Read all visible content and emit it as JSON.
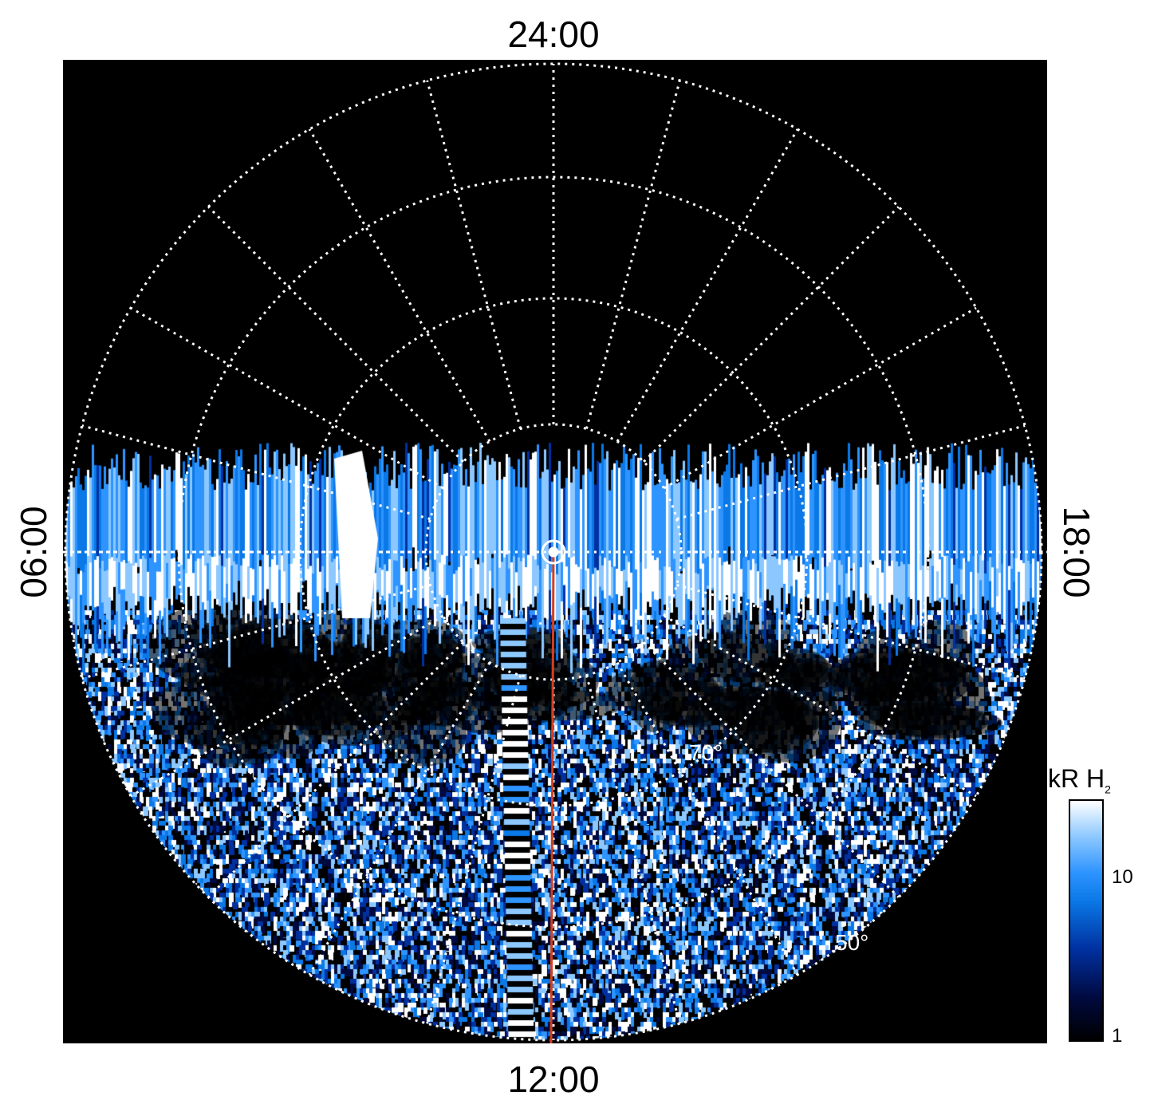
{
  "local_time_labels": {
    "top": "24:00",
    "bottom": "12:00",
    "left": "06:00",
    "right": "18:00"
  },
  "latitude_labels": {
    "lat70": "70°",
    "lat50": "50°"
  },
  "colorbar": {
    "title": "kR H",
    "title_subscript": "2",
    "ticks": [
      "10",
      "1"
    ],
    "colors": [
      "#000000",
      "#000a40",
      "#0030a0",
      "#0a78e6",
      "#2e94ff",
      "#8cc8ff",
      "#ffffff"
    ]
  },
  "overlay_colors": {
    "grid": "#ffffff",
    "meridian": "#d04020",
    "background": "#000000"
  }
}
